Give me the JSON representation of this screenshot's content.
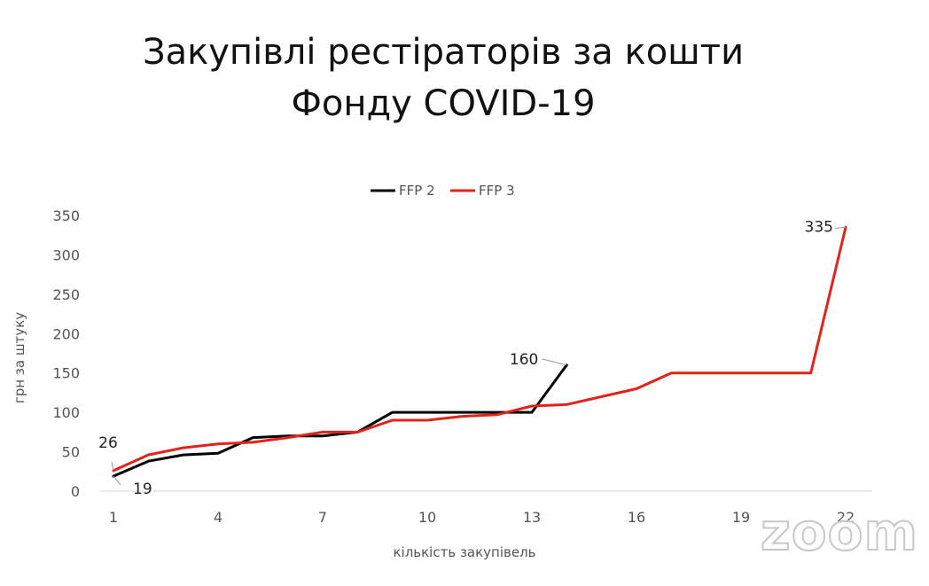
{
  "title_line1": "Закупівлі рестіраторів за кошти",
  "title_line2": "Фонду COVID-19",
  "watermark": "zoom",
  "chart_data": {
    "type": "line",
    "title": "",
    "xlabel": "кількість закупівель",
    "ylabel": "грн за штуку",
    "xlim": [
      1,
      22
    ],
    "ylim": [
      0,
      350
    ],
    "x_ticks": [
      "1",
      "4",
      "7",
      "10",
      "13",
      "16",
      "19",
      "22"
    ],
    "y_ticks": [
      "0",
      "50",
      "100",
      "150",
      "200",
      "250",
      "300",
      "350"
    ],
    "grid": false,
    "legend_position": "top",
    "series": [
      {
        "name": "FFP 2",
        "color": "#000000",
        "x": [
          1,
          2,
          3,
          4,
          5,
          6,
          7,
          8,
          9,
          10,
          11,
          12,
          13,
          14
        ],
        "values": [
          19,
          38,
          46,
          48,
          68,
          70,
          70,
          75,
          100,
          100,
          100,
          100,
          100,
          160
        ]
      },
      {
        "name": "FFP 3",
        "color": "#e2231a",
        "x": [
          1,
          2,
          3,
          4,
          5,
          6,
          7,
          8,
          9,
          10,
          11,
          12,
          13,
          14,
          15,
          16,
          17,
          18,
          19,
          20,
          21,
          22
        ],
        "values": [
          26,
          46,
          55,
          60,
          62,
          68,
          75,
          75,
          90,
          90,
          95,
          97,
          108,
          110,
          120,
          130,
          150,
          150,
          150,
          150,
          150,
          335
        ]
      }
    ],
    "data_labels": [
      {
        "series": "FFP 2",
        "text": "19"
      },
      {
        "series": "FFP 2",
        "text": "160"
      },
      {
        "series": "FFP 3",
        "text": "26"
      },
      {
        "series": "FFP 3",
        "text": "335"
      }
    ]
  }
}
